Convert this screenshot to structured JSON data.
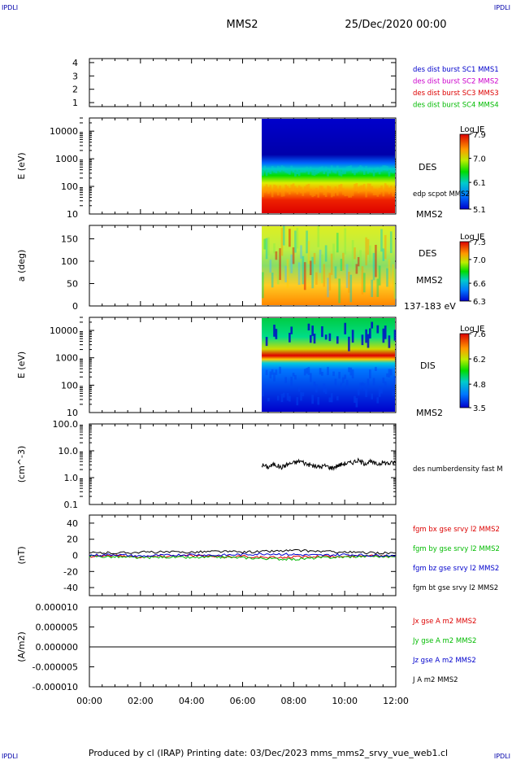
{
  "header": {
    "corner_tl": "IPDLI",
    "corner_tr": "IPDLI",
    "corner_bl": "IPDLI",
    "corner_br": "IPDLI",
    "mission": "MMS2",
    "date": "25/Dec/2020 00:00"
  },
  "footer": {
    "text": "Produced by cl (IRAP)   Printing date: 03/Dec/2023   mms_mms2_srvy_vue_web1.cl"
  },
  "colors": {
    "des_sc1": "#0000cc",
    "des_sc2": "#cc00cc",
    "des_sc3": "#dd0000",
    "des_sc4": "#00bb00",
    "bx": "#dd0000",
    "by": "#00bb00",
    "bz": "#0000cc",
    "bt": "#000000"
  },
  "chart_data": [
    {
      "id": "burst",
      "type": "line",
      "ylim": [
        0.7,
        4.3
      ],
      "ytick_labels": [
        "4",
        "3",
        "2",
        "1"
      ],
      "legend": [
        "des dist burst SC1 MMS1",
        "des dist burst SC2 MMS2",
        "des dist burst SC3 MMS3",
        "des dist burst SC4 MMS4"
      ],
      "series": []
    },
    {
      "id": "des_energy",
      "type": "heatmap",
      "ylabel": "E (eV)",
      "yscale": "log",
      "ylim": [
        10,
        30000
      ],
      "ytick_labels": [
        "10000",
        "1000",
        "100",
        "10"
      ],
      "data_start_hour": 6.75,
      "colorbar": {
        "title": "Log JE",
        "range": [
          5.1,
          7.9
        ],
        "tick_labels": [
          "7.9",
          "7.0",
          "6.1",
          "5.1"
        ]
      },
      "right_labels": [
        "DES",
        "edp scpot MMS2",
        "MMS2"
      ]
    },
    {
      "id": "des_pitch",
      "type": "heatmap",
      "ylabel": "a (deg)",
      "ylim": [
        0,
        180
      ],
      "ytick_labels": [
        "150",
        "100",
        "50",
        "0"
      ],
      "data_start_hour": 6.75,
      "colorbar": {
        "title": "Log JE",
        "range": [
          6.3,
          7.3
        ],
        "tick_labels": [
          "7.3",
          "7.0",
          "6.6",
          "6.3"
        ]
      },
      "right_labels": [
        "DES",
        "MMS2",
        "137-183 eV"
      ]
    },
    {
      "id": "dis_energy",
      "type": "heatmap",
      "ylabel": "E (eV)",
      "yscale": "log",
      "ylim": [
        10,
        30000
      ],
      "ytick_labels": [
        "10000",
        "1000",
        "100",
        "10"
      ],
      "data_start_hour": 6.75,
      "colorbar": {
        "title": "Log JE",
        "range": [
          3.5,
          7.6
        ],
        "tick_labels": [
          "7.6",
          "6.2",
          "4.8",
          "3.5"
        ]
      },
      "right_labels": [
        "DIS",
        "MMS2"
      ]
    },
    {
      "id": "density",
      "type": "line",
      "ylabel": "(cm^-3)",
      "yscale": "log",
      "ylim": [
        0.1,
        100
      ],
      "ytick_labels": [
        "100.0",
        "10.0",
        "1.0",
        "0.1"
      ],
      "legend": [
        "des numberdensity fast M"
      ],
      "series": [
        {
          "name": "des numberdensity fast M",
          "color_key": "bt",
          "x": [
            6.75,
            7.0,
            7.25,
            7.5,
            7.75,
            8.0,
            8.25,
            8.5,
            8.75,
            9.0,
            9.25,
            9.5,
            9.75,
            10.0,
            10.25,
            10.5,
            10.75,
            11.0,
            11.25,
            11.5,
            11.75,
            12.0
          ],
          "values": [
            3.0,
            2.5,
            3.2,
            2.4,
            3.1,
            3.6,
            4.2,
            3.3,
            2.8,
            2.5,
            2.8,
            2.3,
            2.9,
            3.4,
            3.6,
            4.4,
            3.5,
            3.9,
            3.2,
            3.7,
            3.4,
            3.8
          ]
        }
      ]
    },
    {
      "id": "bfield",
      "type": "line",
      "ylabel": "(nT)",
      "ylim": [
        -50,
        50
      ],
      "ytick_labels": [
        "40",
        "20",
        "0",
        "-20",
        "-40"
      ],
      "legend": [
        "fgm bx gse srvy l2 MMS2",
        "fgm by gse srvy l2 MMS2",
        "fgm bz gse srvy l2 MMS2",
        "fgm bt gse srvy l2 MMS2"
      ],
      "series": [
        {
          "name": "fgm bx gse srvy l2 MMS2",
          "color_key": "bx",
          "x": [
            0,
            1,
            2,
            3,
            4,
            5,
            6,
            7,
            8,
            9,
            10,
            11,
            12
          ],
          "values": [
            -1,
            0,
            -2,
            -1,
            0,
            -2,
            -1,
            -3,
            -2,
            -1,
            -2,
            0,
            -1
          ]
        },
        {
          "name": "fgm by gse srvy l2 MMS2",
          "color_key": "by",
          "x": [
            0,
            1,
            2,
            3,
            4,
            5,
            6,
            7,
            8,
            9,
            10,
            11,
            12
          ],
          "values": [
            -1,
            -2,
            -3,
            -2,
            -3,
            -2,
            -3,
            -4,
            -5,
            -3,
            -2,
            -1,
            -2
          ]
        },
        {
          "name": "fgm bz gse srvy l2 MMS2",
          "color_key": "bz",
          "x": [
            0,
            1,
            2,
            3,
            4,
            5,
            6,
            7,
            8,
            9,
            10,
            11,
            12
          ],
          "values": [
            0,
            1,
            -1,
            0,
            1,
            0,
            1,
            2,
            1,
            0,
            1,
            0,
            0
          ]
        },
        {
          "name": "fgm bt gse srvy l2 MMS2",
          "color_key": "bt",
          "x": [
            0,
            1,
            2,
            3,
            4,
            5,
            6,
            7,
            8,
            9,
            10,
            11,
            12
          ],
          "values": [
            3,
            3,
            4,
            4,
            4,
            5,
            4,
            5,
            6,
            5,
            4,
            3,
            3
          ]
        }
      ]
    },
    {
      "id": "current",
      "type": "line",
      "ylabel": "(A/m2)",
      "ylim": [
        -1e-05,
        1e-05
      ],
      "ytick_labels": [
        "0.000010",
        "0.000005",
        "0.000000",
        "-0.000005",
        "-0.000010"
      ],
      "xtick_labels": [
        "00:00",
        "02:00",
        "04:00",
        "06:00",
        "08:00",
        "10:00",
        "12:00"
      ],
      "xlim": [
        0,
        12
      ],
      "legend": [
        "Jx gse A m2 MMS2",
        "Jy gse A m2 MMS2",
        "Jz gse A m2 MMS2",
        "J A m2 MMS2"
      ],
      "series": [
        {
          "name": "J A m2 MMS2",
          "color_key": "bt",
          "x": [
            0,
            2,
            4,
            6,
            8,
            10,
            12
          ],
          "values": [
            0,
            0,
            0,
            0,
            0,
            0,
            0
          ]
        }
      ]
    }
  ]
}
